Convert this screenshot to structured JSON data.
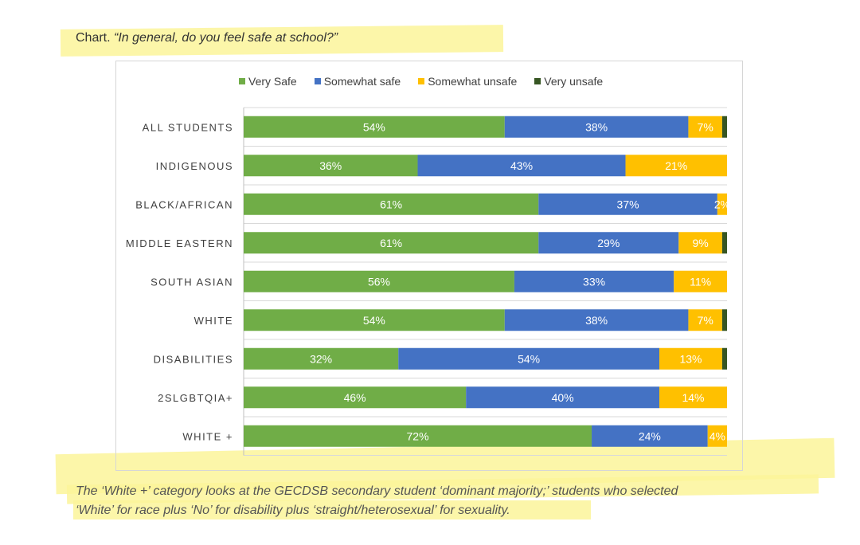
{
  "heading": {
    "prefix": "Chart.",
    "question": "“In general, do you feel safe at school?”"
  },
  "chart_data": {
    "type": "bar",
    "orientation": "horizontal",
    "stacked": true,
    "normalized": true,
    "categories": [
      "ALL STUDENTS",
      "INDIGENOUS",
      "BLACK/AFRICAN",
      "MIDDLE EASTERN",
      "SOUTH ASIAN",
      "WHITE",
      "DISABILITIES",
      "2SLGBTQIA+",
      "WHITE +"
    ],
    "series": [
      {
        "name": "Very Safe",
        "color": "#70ad47",
        "values": [
          54,
          36,
          61,
          61,
          56,
          54,
          32,
          46,
          72
        ]
      },
      {
        "name": "Somewhat safe",
        "color": "#4472c4",
        "values": [
          38,
          43,
          37,
          29,
          33,
          38,
          54,
          40,
          24
        ]
      },
      {
        "name": "Somewhat unsafe",
        "color": "#ffc000",
        "values": [
          7,
          21,
          2,
          9,
          11,
          7,
          13,
          14,
          4
        ]
      },
      {
        "name": "Very unsafe",
        "color": "#375623",
        "values": [
          1,
          0,
          0,
          1,
          0,
          1,
          1,
          0,
          0
        ]
      }
    ],
    "data_labels": [
      [
        "54%",
        "38%",
        "7%",
        ""
      ],
      [
        "36%",
        "43%",
        "21%",
        ""
      ],
      [
        "61%",
        "37%",
        "2%",
        ""
      ],
      [
        "61%",
        "29%",
        "9%",
        ""
      ],
      [
        "56%",
        "33%",
        "11%",
        ""
      ],
      [
        "54%",
        "38%",
        "7%",
        ""
      ],
      [
        "32%",
        "54%",
        "13%",
        ""
      ],
      [
        "46%",
        "40%",
        "14%",
        ""
      ],
      [
        "72%",
        "24%",
        "4%",
        ""
      ]
    ],
    "xlim": [
      0,
      100
    ],
    "legend_position": "top",
    "grid": true
  },
  "footnote": {
    "line1": "The ‘White +’ category looks at the GECDSB secondary student ‘dominant majority;’ students who selected",
    "line2": "‘White’ for race plus ‘No’ for disability plus ‘straight/heterosexual’ for sexuality."
  }
}
